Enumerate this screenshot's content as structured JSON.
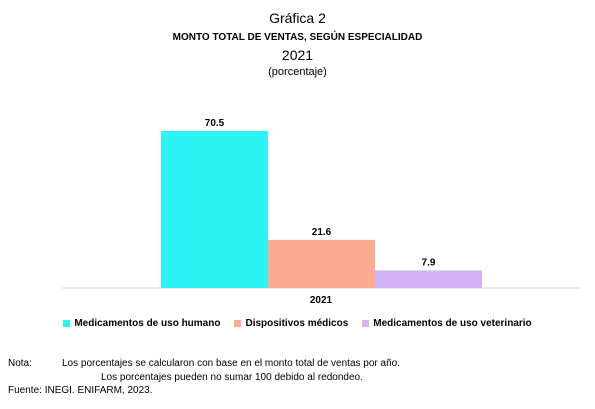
{
  "header": {
    "label": "Gráfica 2",
    "title": "MONTO TOTAL DE VENTAS, SEGÚN ESPECIALIDAD",
    "year": "2021",
    "unit": "(porcentaje)"
  },
  "chart_data": {
    "type": "bar",
    "title": "MONTO TOTAL DE VENTAS, SEGÚN ESPECIALIDAD",
    "categories": [
      "2021"
    ],
    "series": [
      {
        "name": "Medicamentos de uso humano",
        "values": [
          70.5
        ],
        "color": "#2df4f4"
      },
      {
        "name": "Dispositivos médicos",
        "values": [
          21.6
        ],
        "color": "#fcab93"
      },
      {
        "name": "Medicamentos de uso veterinario",
        "values": [
          7.9
        ],
        "color": "#d2b3f6"
      }
    ],
    "data_labels": [
      "70.5",
      "21.6",
      "7.9"
    ],
    "ylim": [
      0,
      100
    ],
    "grid": false,
    "legend_position": "bottom"
  },
  "notes": {
    "nota_label": "Nota:",
    "line1": "Los porcentajes se calcularon con base en el monto total de ventas por año.",
    "line2": "Los porcentajes pueden no sumar 100 debido al redondeo.",
    "source": "Fuente: INEGI. ENIFARM, 2023."
  }
}
